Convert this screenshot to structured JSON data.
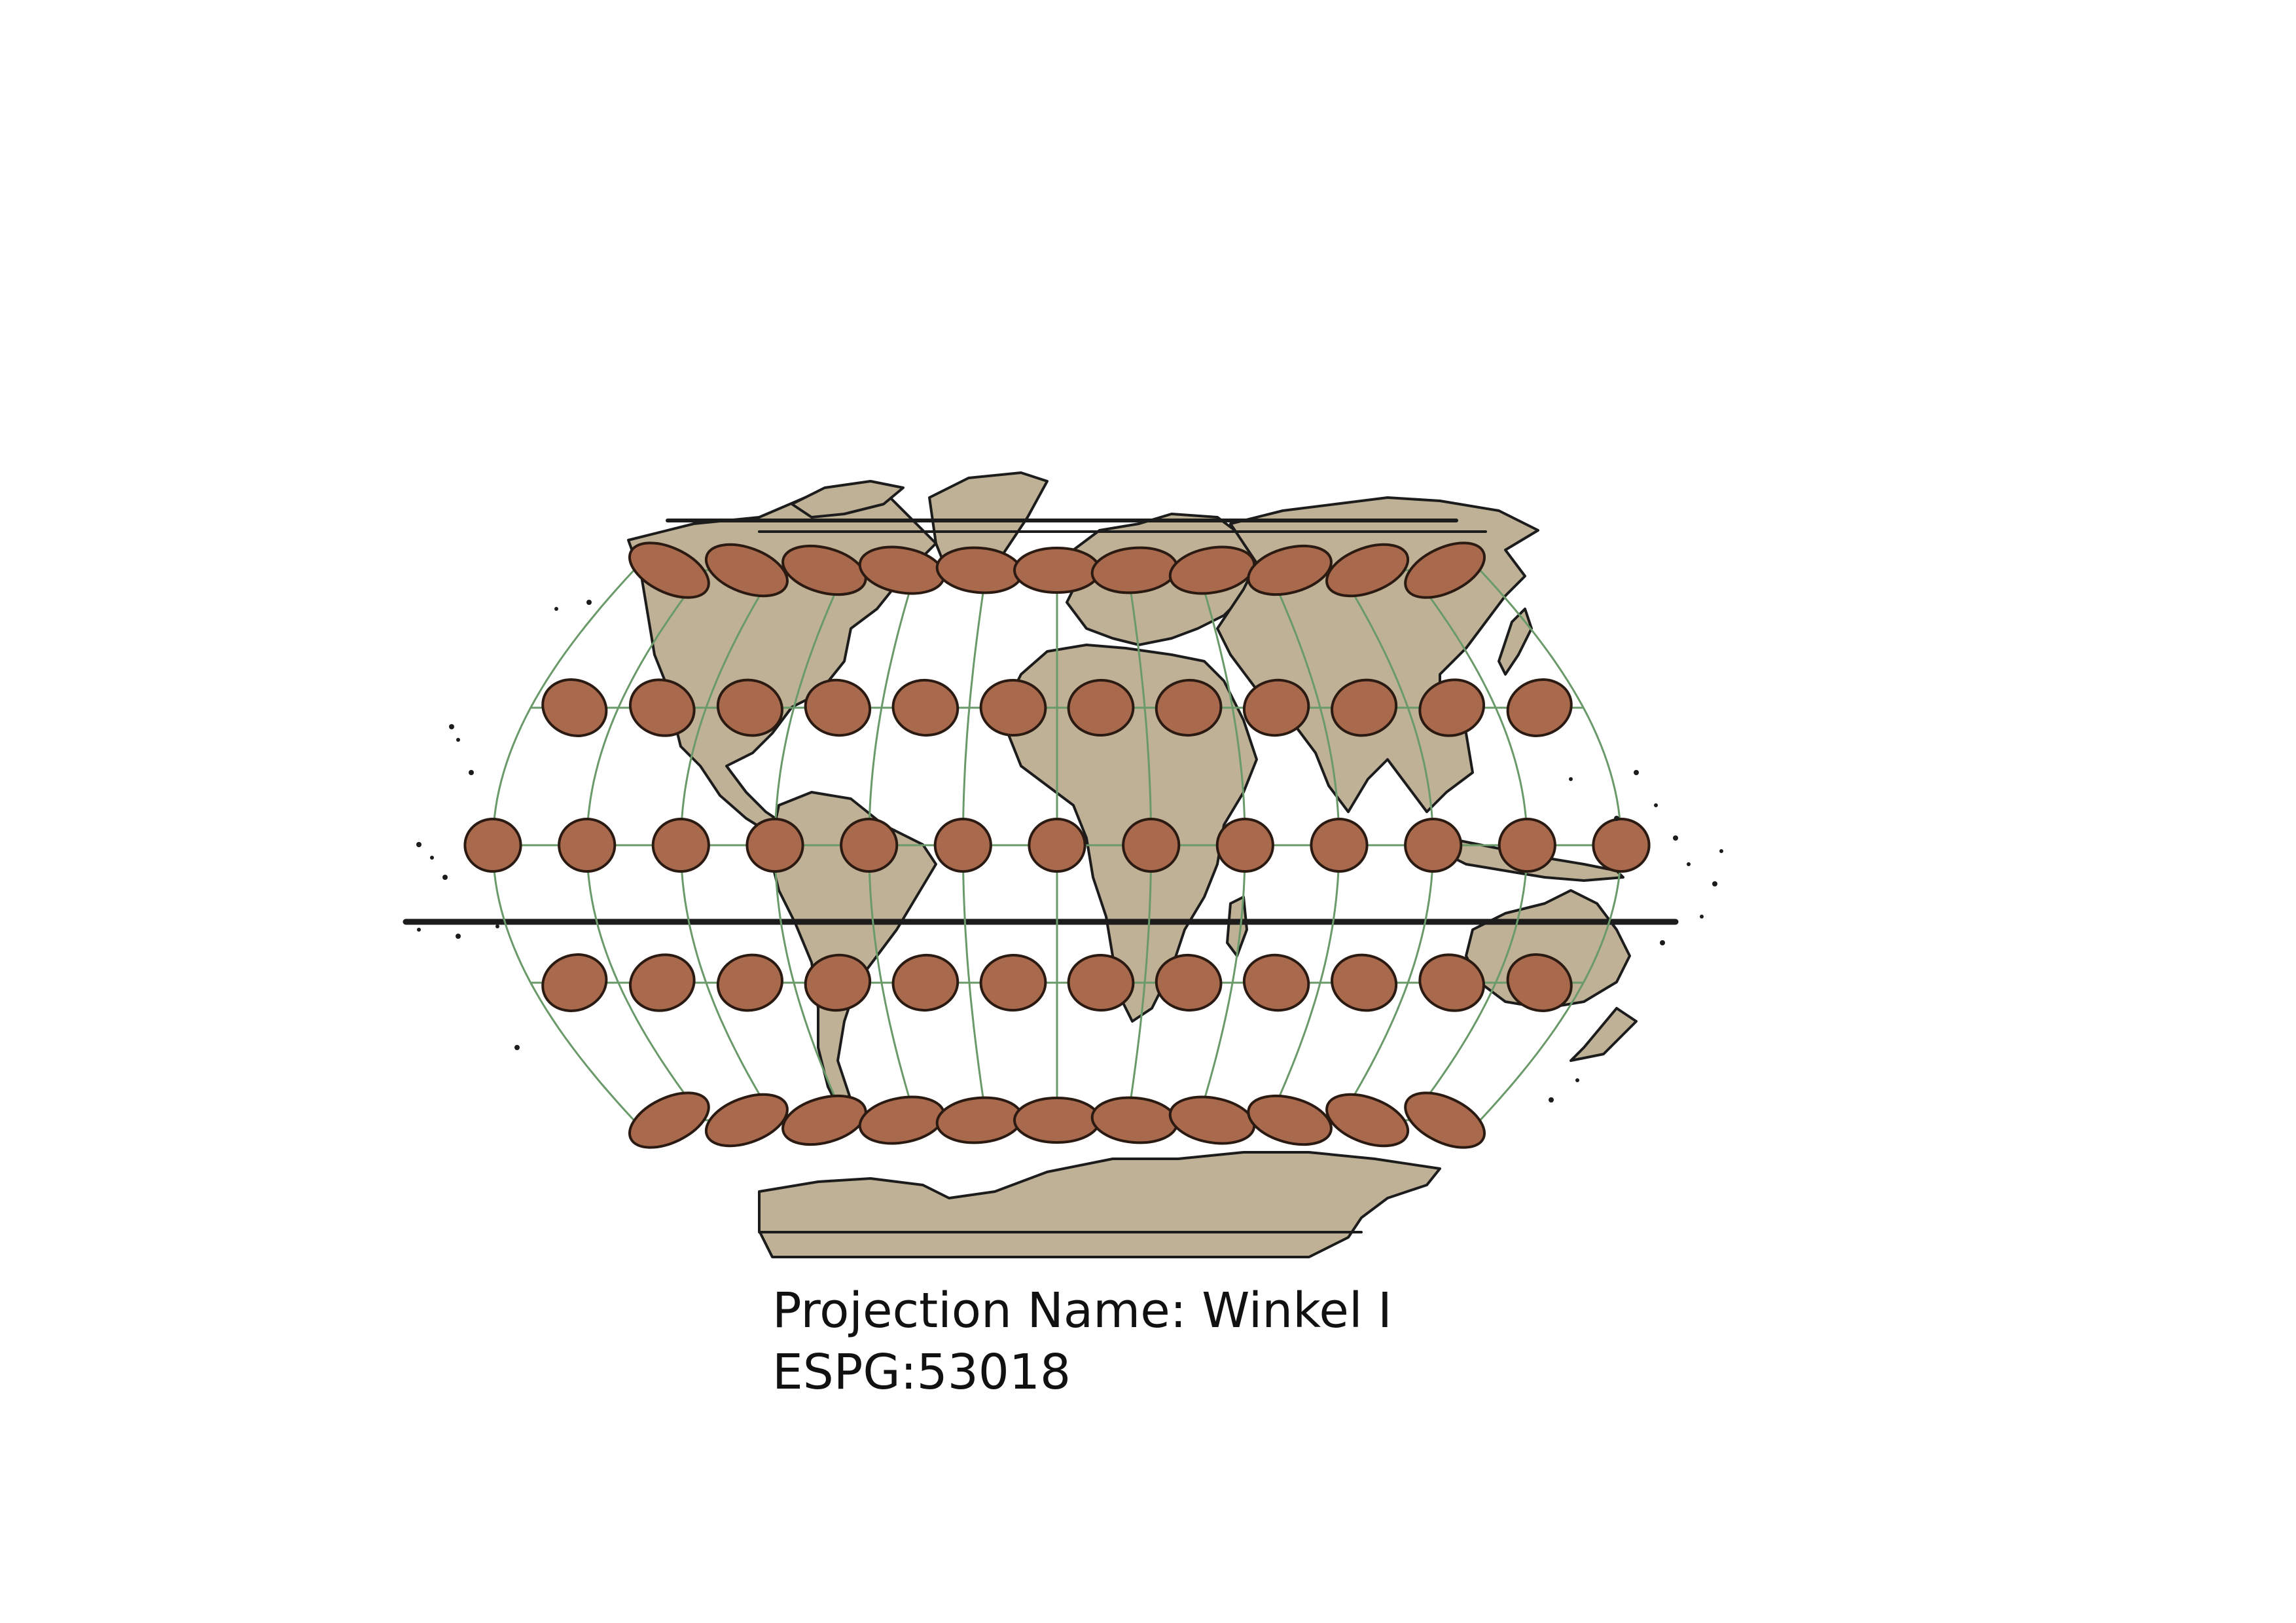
{
  "caption": {
    "projection_line": "Projection Name: Winkel I",
    "code_line": "ESPG:53018"
  },
  "map": {
    "projection": "Winkel I",
    "graticule_meridians_deg": [
      -150,
      -120,
      -90,
      -60,
      -30,
      0,
      30,
      60,
      90,
      120,
      150,
      180
    ],
    "graticule_parallels_deg": [
      60,
      30,
      0,
      -30,
      -60
    ],
    "tissot_indicatrix_rows": [
      {
        "latitude": 60,
        "count": 11
      },
      {
        "latitude": 30,
        "count": 12
      },
      {
        "latitude": 0,
        "count": 13
      },
      {
        "latitude": -30,
        "count": 12
      },
      {
        "latitude": -60,
        "count": 11
      }
    ],
    "colors": {
      "land": "#bfb196",
      "coastline": "#1c1c1c",
      "graticule": "#6a9a6a",
      "tissot_fill": "#a9694d",
      "tissot_stroke": "#2a1a12"
    }
  }
}
